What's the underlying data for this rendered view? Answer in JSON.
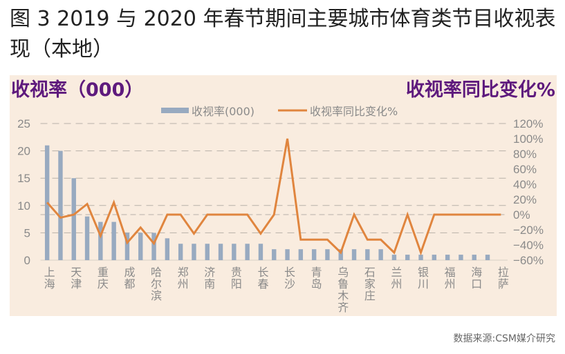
{
  "title": "图 3 2019 与 2020 年春节期间主要城市体育类节目收视表现（本地）",
  "source": "数据来源:CSM媒介研究",
  "colors": {
    "bar": "#98aac0",
    "line": "#e0853e",
    "panel": "#f9ecdf",
    "axis_title": "#5e1a7d"
  },
  "chart_data": {
    "type": "bar+line",
    "left_axis_title": "收视率（000）",
    "right_axis_title": "收视率同比变化%",
    "legend": [
      "收视率(000)",
      "收视率同比变化%"
    ],
    "legend_placement": "top",
    "grid": true,
    "categories": [
      "上海",
      "",
      "天津",
      "",
      "重庆",
      "",
      "成都",
      "",
      "哈尔滨",
      "",
      "郑州",
      "",
      "济南",
      "",
      "贵阳",
      "",
      "长春",
      "",
      "长沙",
      "",
      "青岛",
      "",
      "乌鲁木齐",
      "",
      "石家庄",
      "",
      "兰州",
      "",
      "银川",
      "",
      "福州",
      "",
      "海口",
      "",
      "拉萨"
    ],
    "series": [
      {
        "name": "收视率(000)",
        "type": "bar",
        "axis": "left",
        "values": [
          21,
          20,
          15,
          8,
          7,
          7,
          5,
          5,
          5,
          4,
          3,
          3,
          3,
          3,
          3,
          3,
          3,
          2,
          2,
          2,
          2,
          2,
          2,
          2,
          2,
          2,
          1,
          1,
          1,
          1,
          1,
          1,
          1,
          1,
          0
        ]
      },
      {
        "name": "收视率同比变化%",
        "type": "line",
        "axis": "right",
        "values": [
          16,
          -4,
          0,
          14,
          -28,
          16,
          -37,
          -17,
          -38,
          0,
          0,
          -25,
          0,
          0,
          0,
          0,
          -25,
          0,
          100,
          -33,
          -33,
          -33,
          -50,
          0,
          -33,
          -33,
          -50,
          0,
          -50,
          0,
          0,
          0,
          0,
          0,
          0
        ]
      }
    ],
    "ylim_left": [
      0,
      25
    ],
    "yticks_left": [
      0,
      5,
      10,
      15,
      20,
      25
    ],
    "ylim_right": [
      -60,
      120
    ],
    "yticks_right": [
      "-60%",
      "-40%",
      "-20%",
      "0%",
      "20%",
      "40%",
      "60%",
      "80%",
      "100%",
      "120%"
    ]
  }
}
